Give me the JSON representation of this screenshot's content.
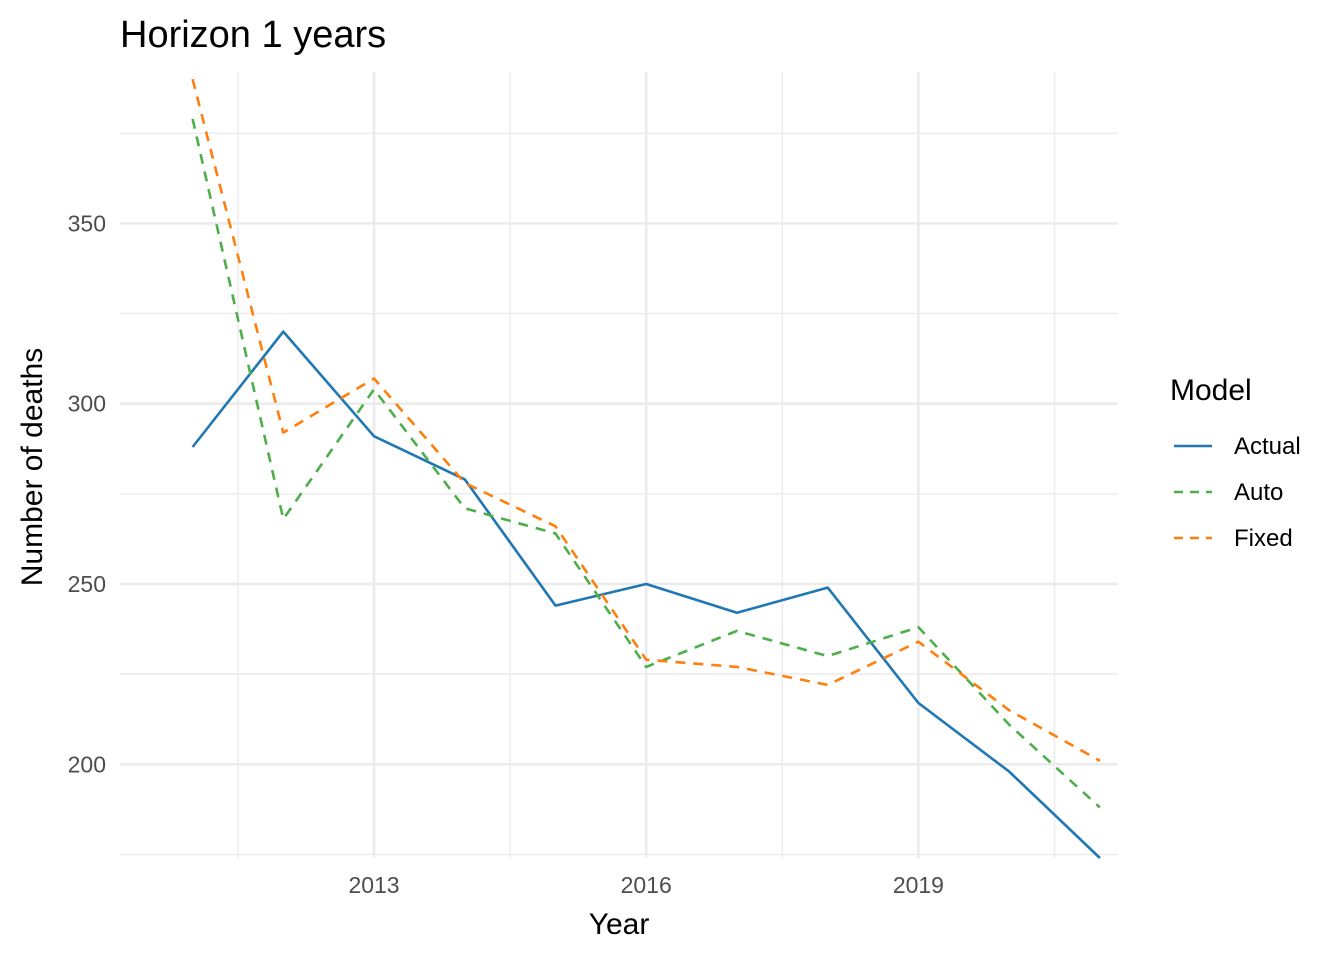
{
  "chart_data": {
    "type": "line",
    "title": "Horizon 1 years",
    "xlabel": "Year",
    "ylabel": "Number of deaths",
    "x": [
      2011,
      2012,
      2013,
      2014,
      2015,
      2016,
      2017,
      2018,
      2019,
      2020,
      2021
    ],
    "xlim": [
      2010.2,
      2021.2
    ],
    "ylim": [
      174,
      392
    ],
    "x_ticks": [
      2013,
      2016,
      2019
    ],
    "x_minor_ticks": [
      2011.5,
      2014.5,
      2017.5,
      2020.5
    ],
    "y_ticks": [
      200,
      250,
      300,
      350
    ],
    "y_minor_ticks": [
      175,
      225,
      275,
      325,
      375
    ],
    "grid": true,
    "legend": {
      "title": "Model",
      "position": "right"
    },
    "series": [
      {
        "name": "Actual",
        "color": "#1f77b4",
        "linetype": "solid",
        "values": [
          288,
          320,
          291,
          279,
          244,
          250,
          242,
          249,
          217,
          198,
          174
        ]
      },
      {
        "name": "Auto",
        "color": "#4daf4a",
        "linetype": "dashed",
        "values": [
          379,
          268,
          304,
          271,
          264,
          227,
          237,
          230,
          238,
          211,
          188
        ]
      },
      {
        "name": "Fixed",
        "color": "#ff7f0e",
        "linetype": "dashed",
        "values": [
          390,
          292,
          307,
          278,
          266,
          229,
          227,
          222,
          234,
          215,
          201
        ]
      }
    ]
  }
}
